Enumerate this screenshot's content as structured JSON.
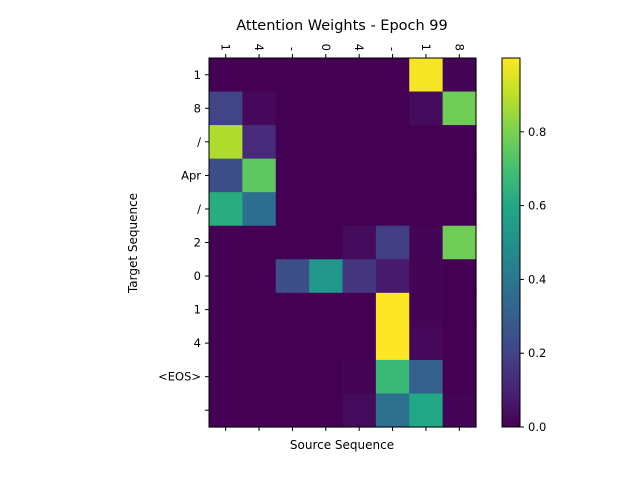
{
  "chart_data": {
    "type": "heatmap",
    "title": "Attention Weights - Epoch 99",
    "xlabel": "Source Sequence",
    "ylabel": "Target Sequence",
    "x_tick_labels": [
      "1",
      "4",
      "-",
      "0",
      "4",
      "-",
      "1",
      "8"
    ],
    "y_tick_labels": [
      "1",
      "8",
      "/",
      "Apr",
      "/",
      "2",
      "0",
      "1",
      "4",
      "<EOS>",
      ""
    ],
    "colormap": "viridis",
    "colorbar": {
      "range": [
        0.0,
        1.0
      ],
      "ticks": [
        0.0,
        0.2,
        0.4,
        0.6,
        0.8
      ],
      "tick_labels": [
        "0.0",
        "0.2",
        "0.4",
        "0.6",
        "0.8"
      ]
    },
    "vmin": 0.0,
    "vmax": 1.0,
    "values": [
      [
        0.0,
        0.0,
        0.0,
        0.0,
        0.0,
        0.0,
        0.99,
        0.01
      ],
      [
        0.2,
        0.02,
        0.0,
        0.0,
        0.0,
        0.0,
        0.03,
        0.78
      ],
      [
        0.88,
        0.12,
        0.0,
        0.0,
        0.0,
        0.0,
        0.0,
        0.0
      ],
      [
        0.24,
        0.75,
        0.0,
        0.0,
        0.0,
        0.0,
        0.0,
        0.0
      ],
      [
        0.62,
        0.36,
        0.0,
        0.0,
        0.0,
        0.0,
        0.0,
        0.0
      ],
      [
        0.0,
        0.0,
        0.0,
        0.0,
        0.03,
        0.18,
        0.01,
        0.78
      ],
      [
        0.0,
        0.0,
        0.24,
        0.52,
        0.16,
        0.07,
        0.01,
        0.0
      ],
      [
        0.0,
        0.0,
        0.0,
        0.0,
        0.0,
        1.0,
        0.01,
        0.0
      ],
      [
        0.0,
        0.0,
        0.0,
        0.0,
        0.0,
        1.0,
        0.02,
        0.0
      ],
      [
        0.0,
        0.0,
        0.0,
        0.0,
        0.01,
        0.67,
        0.3,
        0.0
      ],
      [
        0.0,
        0.0,
        0.0,
        0.0,
        0.03,
        0.37,
        0.6,
        0.01
      ]
    ]
  }
}
